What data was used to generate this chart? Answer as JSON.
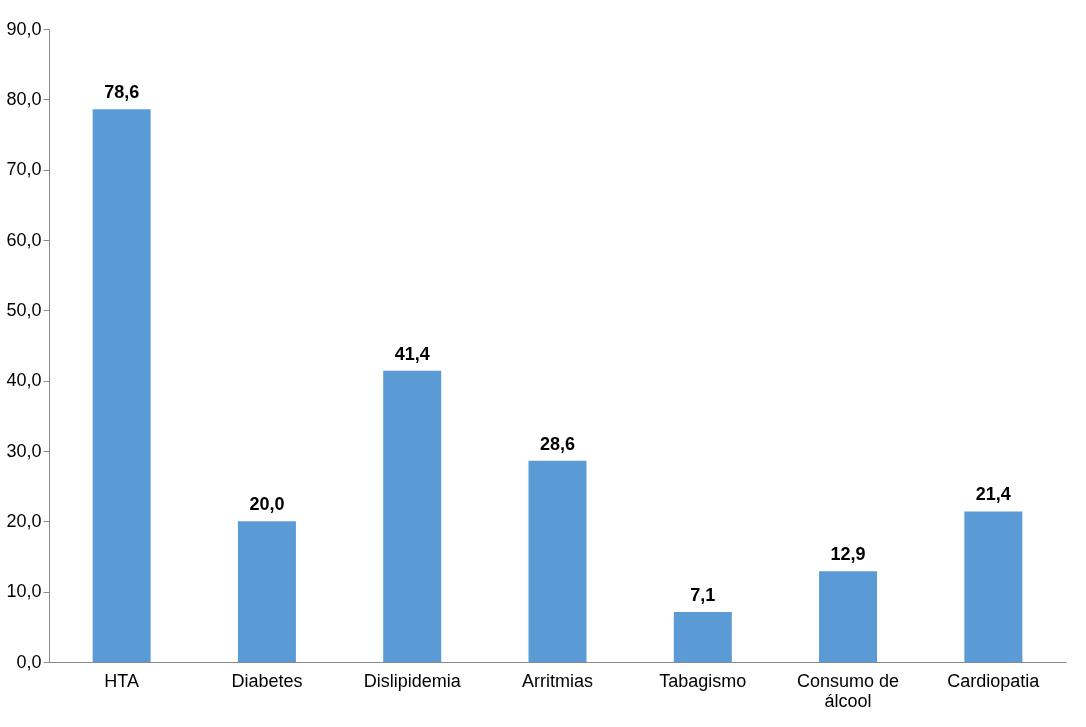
{
  "chart_data": {
    "type": "bar",
    "categories": [
      "HTA",
      "Diabetes",
      "Dislipidemia",
      "Arritmias",
      "Tabagismo",
      "Consumo de álcool",
      "Cardiopatia"
    ],
    "values": [
      78.6,
      20.0,
      41.4,
      28.6,
      7.1,
      12.9,
      21.4
    ],
    "value_labels": [
      "78,6",
      "20,0",
      "41,4",
      "28,6",
      "7,1",
      "12,9",
      "21,4"
    ],
    "color": "#5b9bd5",
    "ylim": [
      0,
      90
    ],
    "yticks": [
      {
        "value": 0,
        "label": "0,0"
      },
      {
        "value": 10,
        "label": "10,0"
      },
      {
        "value": 20,
        "label": "20,0"
      },
      {
        "value": 30,
        "label": "30,0"
      },
      {
        "value": 40,
        "label": "40,0"
      },
      {
        "value": 50,
        "label": "50,0"
      },
      {
        "value": 60,
        "label": "60,0"
      },
      {
        "value": 70,
        "label": "70,0"
      },
      {
        "value": 80,
        "label": "80,0"
      },
      {
        "value": 90,
        "label": "90,0"
      }
    ],
    "grid": false
  }
}
